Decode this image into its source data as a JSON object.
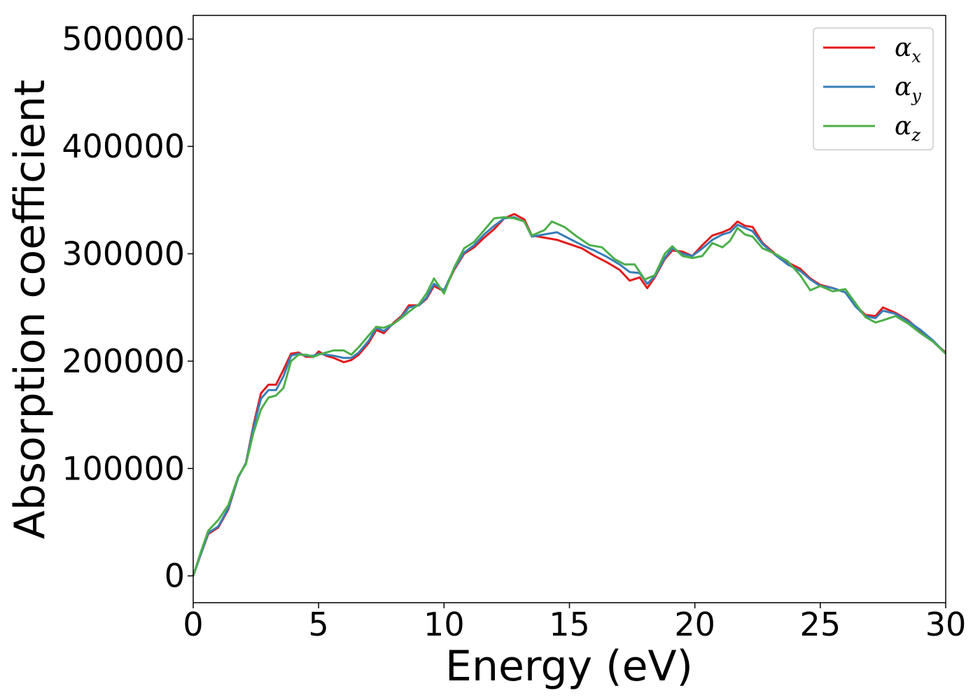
{
  "chart_data": {
    "type": "line",
    "title": "",
    "xlabel": "Energy (eV)",
    "ylabel": "Absorption coefficient",
    "xlim": [
      0,
      30
    ],
    "ylim": [
      -25000,
      522000
    ],
    "xticks": [
      0,
      5,
      10,
      15,
      20,
      25,
      30
    ],
    "xtick_labels": [
      "0",
      "5",
      "10",
      "15",
      "20",
      "25",
      "30"
    ],
    "yticks": [
      0,
      100000,
      200000,
      300000,
      400000,
      500000
    ],
    "ytick_labels": [
      "0",
      "100000",
      "200000",
      "300000",
      "400000",
      "500000"
    ],
    "grid": false,
    "legend": {
      "position": "top-right"
    },
    "series": [
      {
        "name": "α_x",
        "base": "α",
        "sub": "x",
        "color": "#e41a1c",
        "points": [
          [
            0,
            0
          ],
          [
            0.3,
            20000
          ],
          [
            0.6,
            39000
          ],
          [
            1,
            45000
          ],
          [
            1.4,
            62000
          ],
          [
            1.8,
            92000
          ],
          [
            2.1,
            105000
          ],
          [
            2.4,
            140000
          ],
          [
            2.7,
            170000
          ],
          [
            3,
            178000
          ],
          [
            3.3,
            178000
          ],
          [
            3.6,
            192000
          ],
          [
            3.9,
            207000
          ],
          [
            4.2,
            208000
          ],
          [
            4.5,
            204000
          ],
          [
            4.8,
            204000
          ],
          [
            5,
            209000
          ],
          [
            5.3,
            205000
          ],
          [
            5.6,
            203000
          ],
          [
            6,
            199000
          ],
          [
            6.3,
            201000
          ],
          [
            6.6,
            206000
          ],
          [
            7,
            217000
          ],
          [
            7.3,
            229000
          ],
          [
            7.6,
            226000
          ],
          [
            8,
            236000
          ],
          [
            8.3,
            242000
          ],
          [
            8.6,
            252000
          ],
          [
            9,
            252000
          ],
          [
            9.3,
            258000
          ],
          [
            9.6,
            270000
          ],
          [
            10,
            265000
          ],
          [
            10.4,
            285000
          ],
          [
            10.8,
            300000
          ],
          [
            11.2,
            306000
          ],
          [
            11.6,
            315000
          ],
          [
            12,
            323000
          ],
          [
            12.4,
            333000
          ],
          [
            12.8,
            337000
          ],
          [
            13.2,
            332000
          ],
          [
            13.5,
            317000
          ],
          [
            14,
            315000
          ],
          [
            14.5,
            313000
          ],
          [
            15,
            309000
          ],
          [
            15.5,
            305000
          ],
          [
            16,
            298000
          ],
          [
            16.5,
            292000
          ],
          [
            17,
            285000
          ],
          [
            17.4,
            275000
          ],
          [
            17.8,
            278000
          ],
          [
            18.1,
            268000
          ],
          [
            18.4,
            278000
          ],
          [
            18.8,
            295000
          ],
          [
            19.1,
            303000
          ],
          [
            19.5,
            302000
          ],
          [
            19.9,
            298000
          ],
          [
            20.3,
            308000
          ],
          [
            20.7,
            317000
          ],
          [
            21.1,
            320000
          ],
          [
            21.4,
            323000
          ],
          [
            21.7,
            330000
          ],
          [
            22,
            326000
          ],
          [
            22.3,
            325000
          ],
          [
            22.7,
            310000
          ],
          [
            23.2,
            300000
          ],
          [
            23.7,
            292000
          ],
          [
            24.2,
            286000
          ],
          [
            24.6,
            277000
          ],
          [
            25,
            271000
          ],
          [
            25.5,
            268000
          ],
          [
            26,
            264000
          ],
          [
            26.4,
            252000
          ],
          [
            26.8,
            243000
          ],
          [
            27.2,
            242000
          ],
          [
            27.5,
            250000
          ],
          [
            28,
            245000
          ],
          [
            28.5,
            238000
          ],
          [
            29,
            228000
          ],
          [
            29.5,
            218000
          ],
          [
            30,
            208000
          ]
        ]
      },
      {
        "name": "α_y",
        "base": "α",
        "sub": "y",
        "color": "#377eb8",
        "points": [
          [
            0,
            0
          ],
          [
            0.3,
            20000
          ],
          [
            0.6,
            40000
          ],
          [
            1,
            46000
          ],
          [
            1.4,
            63000
          ],
          [
            1.8,
            92000
          ],
          [
            2.1,
            105000
          ],
          [
            2.4,
            138000
          ],
          [
            2.7,
            165000
          ],
          [
            3,
            173000
          ],
          [
            3.3,
            173000
          ],
          [
            3.6,
            186000
          ],
          [
            3.9,
            205000
          ],
          [
            4.2,
            207000
          ],
          [
            4.5,
            205000
          ],
          [
            4.8,
            205000
          ],
          [
            5,
            207000
          ],
          [
            5.3,
            206000
          ],
          [
            5.6,
            205000
          ],
          [
            6,
            203000
          ],
          [
            6.3,
            203000
          ],
          [
            6.6,
            208000
          ],
          [
            7,
            219000
          ],
          [
            7.3,
            231000
          ],
          [
            7.6,
            228000
          ],
          [
            8,
            235000
          ],
          [
            8.3,
            241000
          ],
          [
            8.6,
            250000
          ],
          [
            9,
            252000
          ],
          [
            9.3,
            259000
          ],
          [
            9.6,
            272000
          ],
          [
            10,
            266000
          ],
          [
            10.4,
            286000
          ],
          [
            10.8,
            301000
          ],
          [
            11.2,
            308000
          ],
          [
            11.6,
            318000
          ],
          [
            12,
            326000
          ],
          [
            12.4,
            333000
          ],
          [
            12.8,
            334000
          ],
          [
            13.2,
            330000
          ],
          [
            13.5,
            316000
          ],
          [
            14,
            318000
          ],
          [
            14.5,
            320000
          ],
          [
            15,
            314000
          ],
          [
            15.5,
            308000
          ],
          [
            16,
            303000
          ],
          [
            16.5,
            297000
          ],
          [
            17,
            290000
          ],
          [
            17.4,
            283000
          ],
          [
            17.8,
            282000
          ],
          [
            18.1,
            272000
          ],
          [
            18.4,
            279000
          ],
          [
            18.8,
            296000
          ],
          [
            19.1,
            305000
          ],
          [
            19.5,
            300000
          ],
          [
            19.9,
            298000
          ],
          [
            20.3,
            305000
          ],
          [
            20.7,
            313000
          ],
          [
            21.1,
            318000
          ],
          [
            21.4,
            320000
          ],
          [
            21.7,
            327000
          ],
          [
            22,
            324000
          ],
          [
            22.3,
            321000
          ],
          [
            22.7,
            309000
          ],
          [
            23.2,
            299000
          ],
          [
            23.7,
            290000
          ],
          [
            24.2,
            284000
          ],
          [
            24.6,
            276000
          ],
          [
            25,
            270000
          ],
          [
            25.5,
            268000
          ],
          [
            26,
            264000
          ],
          [
            26.4,
            251000
          ],
          [
            26.8,
            242000
          ],
          [
            27.2,
            240000
          ],
          [
            27.5,
            247000
          ],
          [
            28,
            244000
          ],
          [
            28.5,
            237000
          ],
          [
            29,
            229000
          ],
          [
            29.5,
            219000
          ],
          [
            30,
            207000
          ]
        ]
      },
      {
        "name": "α_z",
        "base": "α",
        "sub": "z",
        "color": "#4daf4a",
        "points": [
          [
            0,
            0
          ],
          [
            0.3,
            22000
          ],
          [
            0.6,
            42000
          ],
          [
            1,
            52000
          ],
          [
            1.4,
            66000
          ],
          [
            1.8,
            93000
          ],
          [
            2.1,
            104000
          ],
          [
            2.4,
            133000
          ],
          [
            2.7,
            155000
          ],
          [
            3,
            166000
          ],
          [
            3.3,
            168000
          ],
          [
            3.6,
            175000
          ],
          [
            3.9,
            200000
          ],
          [
            4.2,
            206000
          ],
          [
            4.5,
            206000
          ],
          [
            4.8,
            204000
          ],
          [
            5,
            206000
          ],
          [
            5.3,
            208000
          ],
          [
            5.6,
            210000
          ],
          [
            6,
            210000
          ],
          [
            6.3,
            206000
          ],
          [
            6.6,
            213000
          ],
          [
            7,
            224000
          ],
          [
            7.3,
            232000
          ],
          [
            7.6,
            231000
          ],
          [
            8,
            235000
          ],
          [
            8.3,
            240000
          ],
          [
            8.6,
            246000
          ],
          [
            9,
            253000
          ],
          [
            9.3,
            263000
          ],
          [
            9.6,
            277000
          ],
          [
            10,
            263000
          ],
          [
            10.4,
            287000
          ],
          [
            10.8,
            305000
          ],
          [
            11.2,
            311000
          ],
          [
            11.6,
            322000
          ],
          [
            12,
            333000
          ],
          [
            12.4,
            334000
          ],
          [
            12.8,
            333000
          ],
          [
            13.2,
            330000
          ],
          [
            13.5,
            317000
          ],
          [
            14,
            322000
          ],
          [
            14.3,
            330000
          ],
          [
            14.8,
            325000
          ],
          [
            15.3,
            316000
          ],
          [
            15.8,
            308000
          ],
          [
            16.3,
            306000
          ],
          [
            16.8,
            295000
          ],
          [
            17.2,
            290000
          ],
          [
            17.6,
            290000
          ],
          [
            18,
            276000
          ],
          [
            18.4,
            280000
          ],
          [
            18.8,
            300000
          ],
          [
            19.1,
            307000
          ],
          [
            19.5,
            298000
          ],
          [
            19.9,
            296000
          ],
          [
            20.3,
            298000
          ],
          [
            20.7,
            310000
          ],
          [
            21.1,
            306000
          ],
          [
            21.4,
            312000
          ],
          [
            21.7,
            324000
          ],
          [
            22,
            318000
          ],
          [
            22.3,
            316000
          ],
          [
            22.7,
            305000
          ],
          [
            23.2,
            300000
          ],
          [
            23.7,
            293000
          ],
          [
            24.2,
            280000
          ],
          [
            24.6,
            266000
          ],
          [
            25,
            270000
          ],
          [
            25.5,
            265000
          ],
          [
            26,
            267000
          ],
          [
            26.4,
            254000
          ],
          [
            26.8,
            241000
          ],
          [
            27.2,
            236000
          ],
          [
            27.5,
            238000
          ],
          [
            28,
            242000
          ],
          [
            28.5,
            235000
          ],
          [
            29,
            226000
          ],
          [
            29.5,
            218000
          ],
          [
            30,
            207000
          ]
        ]
      }
    ]
  }
}
